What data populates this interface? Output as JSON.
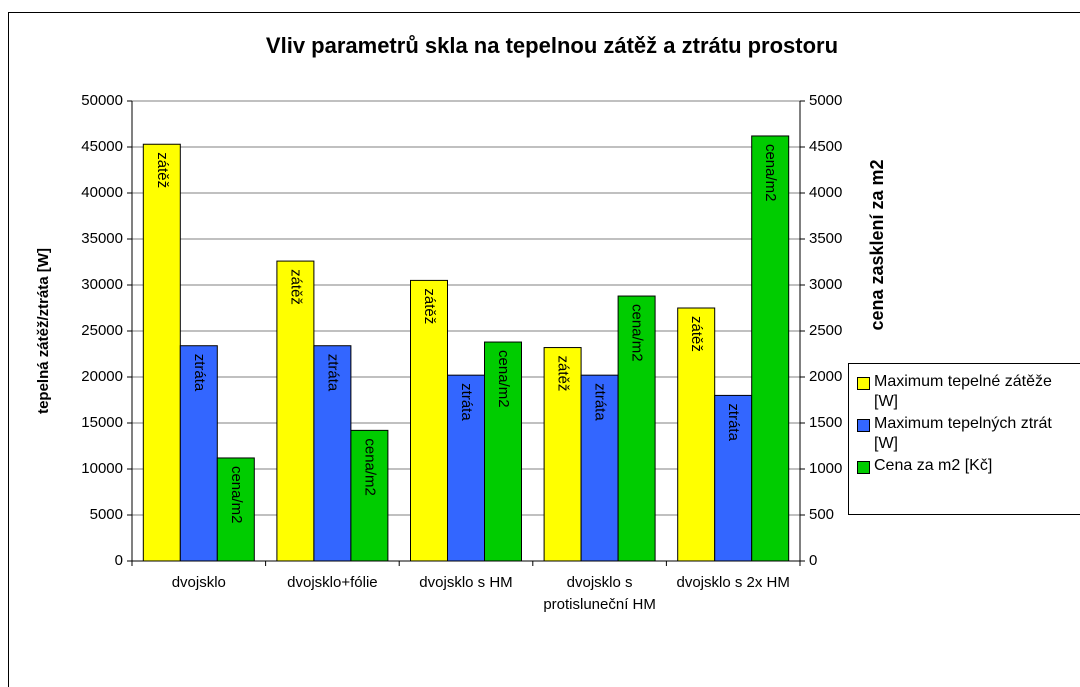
{
  "chart_data": {
    "type": "bar",
    "title": "Vliv parametrů skla na tepelnou zátěž a ztrátu prostoru",
    "y_label": "tepelná zátěž/ztráta [W]",
    "y2_label": "cena zasklení za m2",
    "categories": [
      "dvojsklo",
      "dvojsklo+fólie",
      "dvojsklo s HM",
      "dvojsklo s protisluneční HM",
      "dvojsklo s 2x HM"
    ],
    "series": [
      {
        "name": "Maximum tepelné zátěže [W]",
        "color": "#ffff00",
        "bar_label": "zátěž",
        "values": [
          45300,
          32600,
          30500,
          23200,
          27500
        ]
      },
      {
        "name": "Maximum tepelných ztrát [W]",
        "color": "#3366ff",
        "bar_label": "ztráta",
        "values": [
          23400,
          23400,
          20200,
          20200,
          18000
        ]
      },
      {
        "name": "Cena za m2 [Kč]",
        "color": "#00cc00",
        "bar_label": "cena/m2",
        "axis": "y2",
        "values": [
          1120,
          1420,
          2380,
          2880,
          4620
        ]
      }
    ],
    "ylim": [
      0,
      50000
    ],
    "yticks": [
      0,
      5000,
      10000,
      15000,
      20000,
      25000,
      30000,
      35000,
      40000,
      45000,
      50000
    ],
    "y2lim": [
      0,
      5000
    ],
    "y2ticks": [
      0,
      500,
      1000,
      1500,
      2000,
      2500,
      3000,
      3500,
      4000,
      4500,
      5000
    ],
    "grid": true,
    "legend": "right"
  }
}
